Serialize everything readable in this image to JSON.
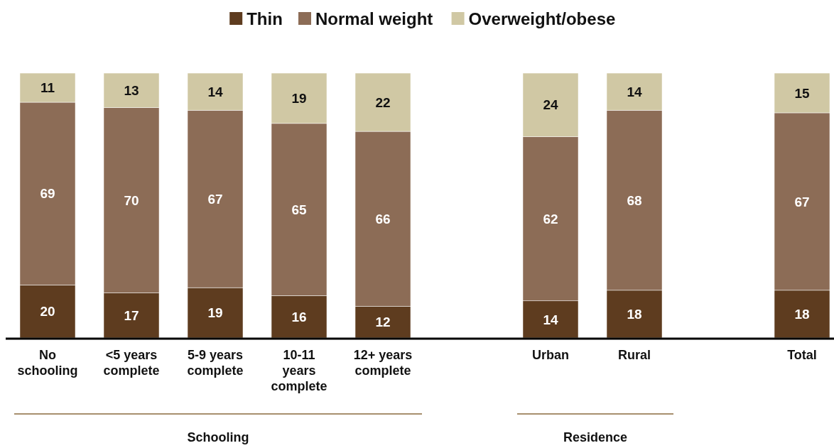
{
  "chart_data": {
    "type": "bar",
    "stacked": true,
    "data_labels": true,
    "legend": "top",
    "categories": [
      "No\nschooling",
      "<5 years\ncomplete",
      "5-9 years\ncomplete",
      "10-11\nyears\ncomplete",
      "12+ years\ncomplete",
      null,
      "Urban",
      "Rural",
      null,
      "Total"
    ],
    "series": [
      {
        "name": "Thin",
        "color": "#5e3c1f",
        "values": [
          20,
          17,
          19,
          16,
          12,
          null,
          14,
          18,
          null,
          18
        ]
      },
      {
        "name": "Normal weight",
        "color": "#8c6c56",
        "values": [
          69,
          70,
          67,
          65,
          66,
          null,
          62,
          68,
          null,
          67
        ]
      },
      {
        "name": "Overweight/obese",
        "color": "#d0c8a4",
        "values": [
          11,
          13,
          14,
          19,
          22,
          null,
          24,
          14,
          null,
          15
        ]
      }
    ],
    "annotations": [
      "Schooling",
      "Residence"
    ]
  }
}
